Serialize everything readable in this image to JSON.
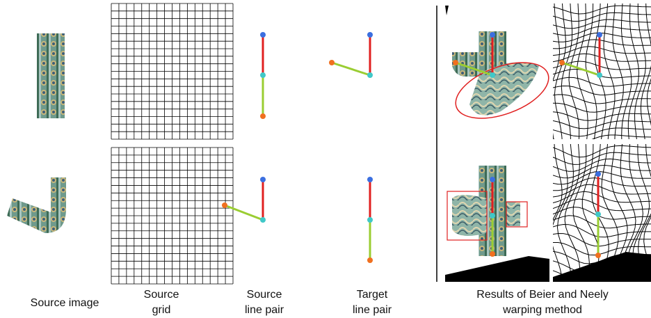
{
  "captions": [
    {
      "lines": [
        "Source image"
      ]
    },
    {
      "lines": [
        "Source",
        "grid"
      ]
    },
    {
      "lines": [
        "Source",
        "line pair"
      ]
    },
    {
      "lines": [
        "Target",
        "line pair"
      ]
    },
    {
      "lines": [
        "Results of Beier and Neely",
        "warping method"
      ]
    }
  ]
}
